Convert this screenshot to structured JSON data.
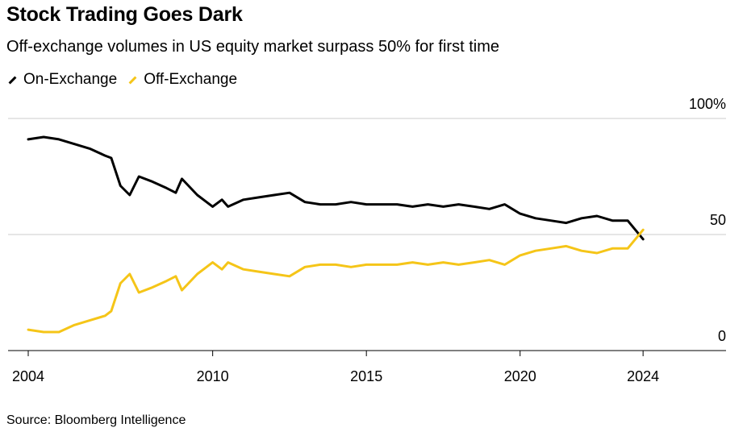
{
  "title": "Stock Trading Goes Dark",
  "subtitle": "Off-exchange volumes in US equity market surpass 50% for first time",
  "source": "Source: Bloomberg Intelligence",
  "colors": {
    "on_exchange": "#000000",
    "off_exchange": "#f5c518",
    "grid": "#cccccc"
  },
  "chart_data": {
    "type": "line",
    "y_ticks": [
      {
        "value": 100,
        "label": "100%"
      },
      {
        "value": 50,
        "label": "50"
      },
      {
        "value": 0,
        "label": "0"
      }
    ],
    "x_ticks": [
      {
        "value": 2004,
        "label": "2004"
      },
      {
        "value": 2010,
        "label": "2010"
      },
      {
        "value": 2015,
        "label": "2015"
      },
      {
        "value": 2020,
        "label": "2020"
      },
      {
        "value": 2024,
        "label": "2024"
      }
    ],
    "xlim": [
      2004,
      2026.2
    ],
    "ylim": [
      0,
      100
    ],
    "x": [
      2004.0,
      2004.5,
      2005.0,
      2005.5,
      2006.0,
      2006.5,
      2006.7,
      2007.0,
      2007.3,
      2007.6,
      2008.0,
      2008.5,
      2008.8,
      2009.0,
      2009.5,
      2010.0,
      2010.3,
      2010.5,
      2011.0,
      2011.5,
      2012.0,
      2012.5,
      2013.0,
      2013.5,
      2014.0,
      2014.5,
      2015.0,
      2015.5,
      2016.0,
      2016.5,
      2017.0,
      2017.5,
      2018.0,
      2018.5,
      2019.0,
      2019.5,
      2020.0,
      2020.5,
      2021.0,
      2021.5,
      2022.0,
      2022.5,
      2023.0,
      2023.5,
      2024.0
    ],
    "series": [
      {
        "name": "On-Exchange",
        "color_key": "on_exchange",
        "values": [
          91,
          92,
          91,
          89,
          87,
          84,
          83,
          71,
          67,
          75,
          73,
          70,
          68,
          74,
          67,
          62,
          65,
          62,
          65,
          66,
          67,
          68,
          64,
          63,
          63,
          64,
          63,
          63,
          63,
          62,
          63,
          62,
          63,
          62,
          61,
          63,
          59,
          57,
          56,
          55,
          57,
          58,
          56,
          56,
          48
        ]
      },
      {
        "name": "Off-Exchange",
        "color_key": "off_exchange",
        "values": [
          9,
          8,
          8,
          11,
          13,
          15,
          17,
          29,
          33,
          25,
          27,
          30,
          32,
          26,
          33,
          38,
          35,
          38,
          35,
          34,
          33,
          32,
          36,
          37,
          37,
          36,
          37,
          37,
          37,
          38,
          37,
          38,
          37,
          38,
          39,
          37,
          41,
          43,
          44,
          45,
          43,
          42,
          44,
          44,
          52
        ]
      }
    ]
  }
}
